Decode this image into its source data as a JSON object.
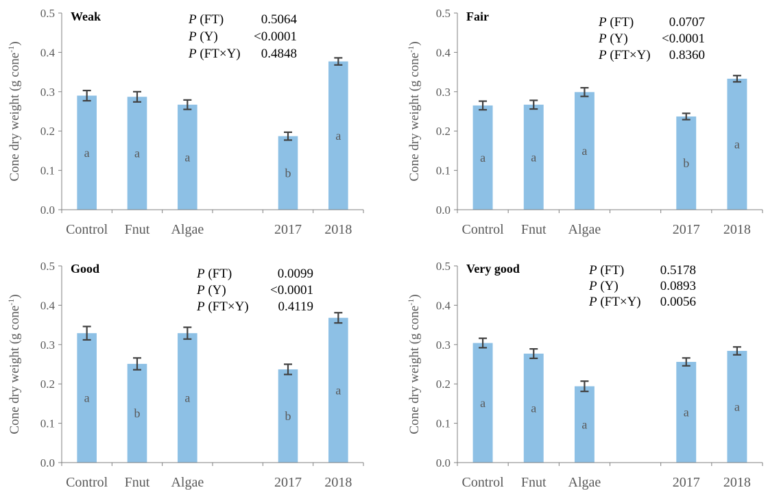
{
  "colors": {
    "bar": "#8DC0E5",
    "error_bar": "#404040",
    "axis": "#7F7F7F",
    "text": "#595959"
  },
  "chart_data": [
    {
      "type": "bar",
      "title": "Weak",
      "ylabel": "Cone dry weight (g cone",
      "ylabel_sup": "-1",
      "ylabel_close": ")",
      "ylim": [
        0,
        0.5
      ],
      "yticks": [
        "0.0",
        "0.1",
        "0.2",
        "0.3",
        "0.4",
        "0.5"
      ],
      "grid": false,
      "categories": [
        "Control",
        "Fnut",
        "Algae",
        "",
        "2017",
        "2018"
      ],
      "values": [
        0.29,
        0.287,
        0.267,
        null,
        0.187,
        0.377
      ],
      "errors": [
        0.013,
        0.013,
        0.012,
        null,
        0.01,
        0.009
      ],
      "letters": [
        "a",
        "a",
        "a",
        "",
        "b",
        "a"
      ],
      "stats": [
        {
          "p": "P",
          "label": " (FT)",
          "value": "0.5064"
        },
        {
          "p": "P",
          "label": " (Y)",
          "value": "<0.0001"
        },
        {
          "p": "P",
          "label": " (FT×Y)",
          "value": "0.4848"
        }
      ]
    },
    {
      "type": "bar",
      "title": "Fair",
      "ylabel": "Cone dry weight (g cone",
      "ylabel_sup": "-1",
      "ylabel_close": ")",
      "ylim": [
        0,
        0.5
      ],
      "yticks": [
        "0.0",
        "0.1",
        "0.2",
        "0.3",
        "0.4",
        "0.5"
      ],
      "grid": false,
      "categories": [
        "Control",
        "Fnut",
        "Algae",
        "",
        "2017",
        "2018"
      ],
      "values": [
        0.265,
        0.267,
        0.299,
        null,
        0.237,
        0.333
      ],
      "errors": [
        0.011,
        0.011,
        0.011,
        null,
        0.008,
        0.008
      ],
      "letters": [
        "a",
        "a",
        "a",
        "",
        "b",
        "a"
      ],
      "stats": [
        {
          "p": "P",
          "label": " (FT)",
          "value": "0.0707"
        },
        {
          "p": "P",
          "label": " (Y)",
          "value": "<0.0001"
        },
        {
          "p": "P",
          "label": " (FT×Y)",
          "value": "0.8360"
        }
      ]
    },
    {
      "type": "bar",
      "title": "Good",
      "ylabel": "Cone dry weight (g cone",
      "ylabel_sup": "-1",
      "ylabel_close": ")",
      "ylim": [
        0,
        0.5
      ],
      "yticks": [
        "0.0",
        "0.1",
        "0.2",
        "0.3",
        "0.4",
        "0.5"
      ],
      "grid": false,
      "categories": [
        "Control",
        "Fnut",
        "Algae",
        "",
        "2017",
        "2018"
      ],
      "values": [
        0.329,
        0.251,
        0.329,
        null,
        0.237,
        0.368
      ],
      "errors": [
        0.017,
        0.015,
        0.015,
        null,
        0.013,
        0.013
      ],
      "letters": [
        "a",
        "b",
        "a",
        "",
        "b",
        "a"
      ],
      "stats": [
        {
          "p": "P",
          "label": " (FT)",
          "value": "0.0099"
        },
        {
          "p": "P",
          "label": " (Y)",
          "value": "<0.0001"
        },
        {
          "p": "P",
          "label": " (FT×Y)",
          "value": "0.4119"
        }
      ]
    },
    {
      "type": "bar",
      "title": "Very good",
      "ylabel": "Cone dry weight (g cone",
      "ylabel_sup": "-1",
      "ylabel_close": ")",
      "ylim": [
        0,
        0.5
      ],
      "yticks": [
        "0.0",
        "0.1",
        "0.2",
        "0.3",
        "0.4",
        "0.5"
      ],
      "grid": false,
      "categories": [
        "Control",
        "Fnut",
        "Algae",
        "",
        "2017",
        "2018"
      ],
      "values": [
        0.304,
        0.277,
        0.194,
        null,
        0.256,
        0.284
      ],
      "errors": [
        0.012,
        0.012,
        0.013,
        null,
        0.01,
        0.01
      ],
      "letters": [
        "a",
        "a",
        "a",
        "",
        "a",
        "a"
      ],
      "stats": [
        {
          "p": "P",
          "label": " (FT)",
          "value": "0.5178"
        },
        {
          "p": "P",
          "label": " (Y)",
          "value": "0.0893"
        },
        {
          "p": "P",
          "label": " (FT×Y)",
          "value": "0.0056"
        }
      ]
    }
  ]
}
